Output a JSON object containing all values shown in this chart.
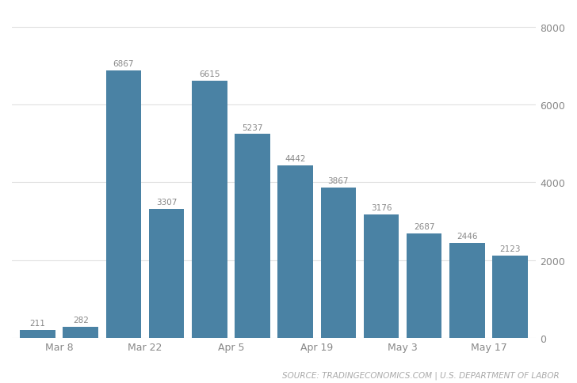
{
  "values": [
    211,
    282,
    6867,
    3307,
    6615,
    5237,
    4442,
    3867,
    3176,
    2687,
    2446,
    2123
  ],
  "bar_labels": [
    "211",
    "282",
    "6867",
    "3307",
    "6615",
    "5237",
    "4442",
    "3867",
    "3176",
    "2687",
    "2446",
    "2123"
  ],
  "x_tick_labels": [
    "Mar 8",
    "Mar 22",
    "Apr 5",
    "Apr 19",
    "May 3",
    "May 17"
  ],
  "x_tick_positions": [
    0.5,
    2.5,
    4.5,
    6.5,
    8.5,
    10.5
  ],
  "bar_color": "#4a82a4",
  "ylim": [
    0,
    8400
  ],
  "yticks": [
    0,
    2000,
    4000,
    6000,
    8000
  ],
  "source_text": "SOURCE: TRADINGECONOMICS.COM | U.S. DEPARTMENT OF LABOR",
  "background_color": "#ffffff",
  "grid_color": "#e0e0e0",
  "bar_label_color": "#888888",
  "bar_label_fontsize": 7.5,
  "tick_label_fontsize": 9,
  "source_fontsize": 7.5
}
